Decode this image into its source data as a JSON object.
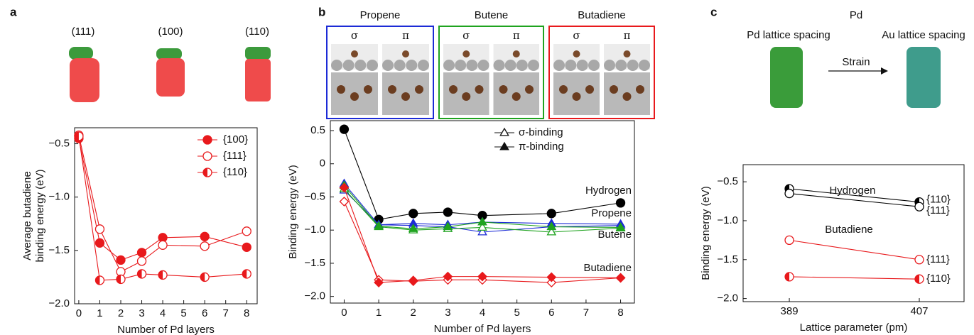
{
  "chart_data": [
    {
      "type": "line",
      "panel_label": "a",
      "facets": [
        "(111)",
        "(100)",
        "(110)"
      ],
      "x": [
        0,
        1,
        2,
        3,
        4,
        6,
        8
      ],
      "xlim": [
        -0.2,
        8.5
      ],
      "xticks": [
        0,
        1,
        2,
        3,
        4,
        5,
        6,
        7,
        8
      ],
      "ylim": [
        -2.0,
        -0.35
      ],
      "yticks": [
        {
          "value": -2.0,
          "label": "−2.0"
        },
        {
          "value": -1.5,
          "label": "−1.5"
        },
        {
          "value": -1.0,
          "label": "−1.0"
        },
        {
          "value": -0.5,
          "label": "−0.5"
        }
      ],
      "xlabel": "Number of Pd layers",
      "ylabel": [
        "Average butadiene",
        "binding energy (eV)"
      ],
      "legend": "upper right",
      "series": [
        {
          "name": "{100}",
          "color": "#e8191c",
          "marker": "filled",
          "values": [
            -0.45,
            -1.43,
            -1.59,
            -1.52,
            -1.38,
            -1.37,
            -1.47
          ]
        },
        {
          "name": "{111}",
          "color": "#e8191c",
          "marker": "open",
          "values": [
            -0.42,
            -1.3,
            -1.7,
            -1.6,
            -1.45,
            -1.46,
            -1.32
          ]
        },
        {
          "name": "{110}",
          "color": "#e8191c",
          "marker": "half",
          "values": [
            -0.43,
            -1.78,
            -1.77,
            -1.72,
            -1.73,
            -1.75,
            -1.72
          ]
        }
      ]
    },
    {
      "type": "line",
      "panel_label": "b",
      "structures": [
        {
          "title": "Propene",
          "color": "#1c2bd6",
          "modes": [
            "σ",
            "π"
          ]
        },
        {
          "title": "Butene",
          "color": "#1fa31f",
          "modes": [
            "σ",
            "π"
          ]
        },
        {
          "title": "Butadiene",
          "color": "#e8191c",
          "modes": [
            "σ",
            "π"
          ]
        }
      ],
      "x": [
        0,
        1,
        2,
        3,
        4,
        6,
        8
      ],
      "xlim": [
        -0.4,
        8.4
      ],
      "xticks": [
        0,
        1,
        2,
        3,
        4,
        5,
        6,
        7,
        8
      ],
      "ylim": [
        -2.1,
        0.65
      ],
      "yticks": [
        {
          "value": -2.0,
          "label": "−2.0"
        },
        {
          "value": -1.5,
          "label": "−1.5"
        },
        {
          "value": -1.0,
          "label": "−1.0"
        },
        {
          "value": -0.5,
          "label": "−0.5"
        },
        0,
        0.5
      ],
      "xlabel": "Number of Pd layers",
      "ylabel": "Binding energy (eV)",
      "legend": [
        "σ-binding",
        "π-binding"
      ],
      "series": [
        {
          "name": "Hydrogen",
          "color": "#000000",
          "marker": "circle",
          "values": [
            0.52,
            -0.84,
            -0.75,
            -0.73,
            -0.78,
            -0.75,
            -0.59
          ]
        },
        {
          "name": "Propene",
          "color": "#1c2bd6",
          "marker": "triangle",
          "sigma_values": [
            -0.4,
            -0.92,
            -0.93,
            -0.95,
            -1.03,
            -0.95,
            -0.93
          ],
          "values": [
            -0.3,
            -0.92,
            -0.9,
            -0.92,
            -0.88,
            -0.9,
            -0.91
          ]
        },
        {
          "name": "Butene",
          "color": "#1fa31f",
          "marker": "triangle",
          "sigma_values": [
            -0.38,
            -0.95,
            -1.0,
            -0.98,
            -0.96,
            -1.03,
            -0.97
          ],
          "values": [
            -0.33,
            -0.94,
            -0.98,
            -0.95,
            -0.88,
            -0.95,
            -0.96
          ]
        },
        {
          "name": "Butadiene",
          "color": "#e8191c",
          "marker": "diamond",
          "sigma_values": [
            -0.57,
            -1.75,
            -1.77,
            -1.75,
            -1.75,
            -1.79,
            -1.72
          ],
          "values": [
            -0.36,
            -1.79,
            -1.76,
            -1.7,
            -1.7,
            -1.71,
            -1.72
          ]
        }
      ]
    },
    {
      "type": "line",
      "panel_label": "c",
      "title": "Pd",
      "annotations": [
        "Pd lattice spacing",
        "Strain",
        "Au lattice spacing"
      ],
      "groups": [
        "Hydrogen",
        "Butadiene"
      ],
      "x": [
        389,
        407
      ],
      "xlim": [
        382.6,
        413.2
      ],
      "xticks": [
        389,
        407
      ],
      "ylim": [
        -2.04,
        -0.28
      ],
      "yticks": [
        {
          "value": -2.0,
          "label": "−2.0"
        },
        {
          "value": -1.5,
          "label": "−1.5"
        },
        {
          "value": -1.0,
          "label": "−1.0"
        },
        {
          "value": -0.5,
          "label": "−0.5"
        }
      ],
      "xlabel": "Lattice parameter (pm)",
      "ylabel": "Binding energy (eV)",
      "series": [
        {
          "name": "{110}",
          "color": "#000000",
          "marker": "half",
          "values": [
            -0.59,
            -0.76
          ]
        },
        {
          "name": "{111}",
          "color": "#000000",
          "marker": "open",
          "values": [
            -0.65,
            -0.82
          ]
        },
        {
          "name": "{111}",
          "color": "#e8191c",
          "marker": "open",
          "values": [
            -1.25,
            -1.5
          ]
        },
        {
          "name": "{110}",
          "color": "#e8191c",
          "marker": "half",
          "values": [
            -1.72,
            -1.75
          ]
        }
      ]
    }
  ]
}
